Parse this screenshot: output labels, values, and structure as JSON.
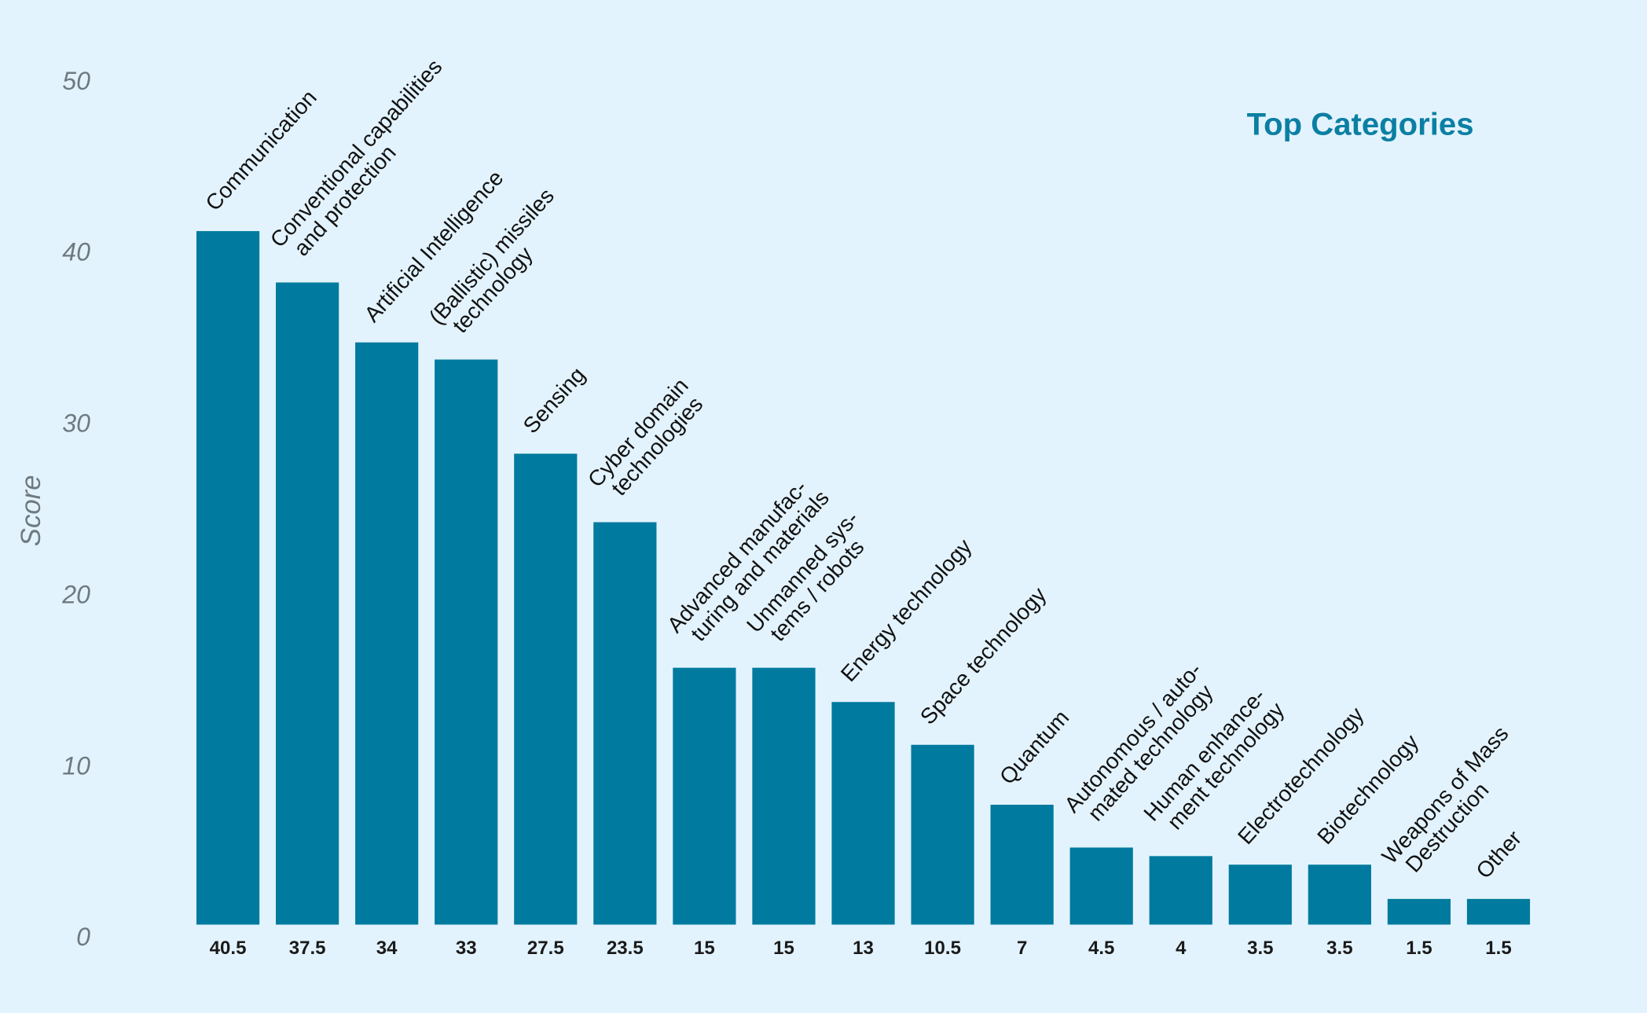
{
  "chart_data": {
    "type": "bar",
    "title": "Top Categories",
    "y_label": "Score",
    "categories": [
      "Communication",
      "Conventional capabilities\nand protection",
      "Artificial Intelligence",
      "(Ballistic) missiles\ntechnology",
      "Sensing",
      "Cyber domain\ntechnologies",
      "Advanced manufac-\nturing and materials",
      "Unmanned sys-\ntems / robots",
      "Energy technology",
      "Space technology",
      "Quantum",
      "Autonomous / auto-\nmated technology",
      "Human enhance-\nment technology",
      "Electrotechnology",
      "Biotechnology",
      "Weapons of Mass\nDestruction",
      "Other"
    ],
    "values": [
      40.5,
      37.5,
      34,
      33,
      27.5,
      23.5,
      15,
      15,
      13,
      10.5,
      7,
      4.5,
      4,
      3.5,
      3.5,
      1.5,
      1.5
    ],
    "color": "#007a9e",
    "title_color": "#0b7fa3",
    "ylim": [
      0,
      50
    ],
    "yticks": [
      0,
      10,
      20,
      30,
      40,
      50
    ],
    "grid": false
  }
}
